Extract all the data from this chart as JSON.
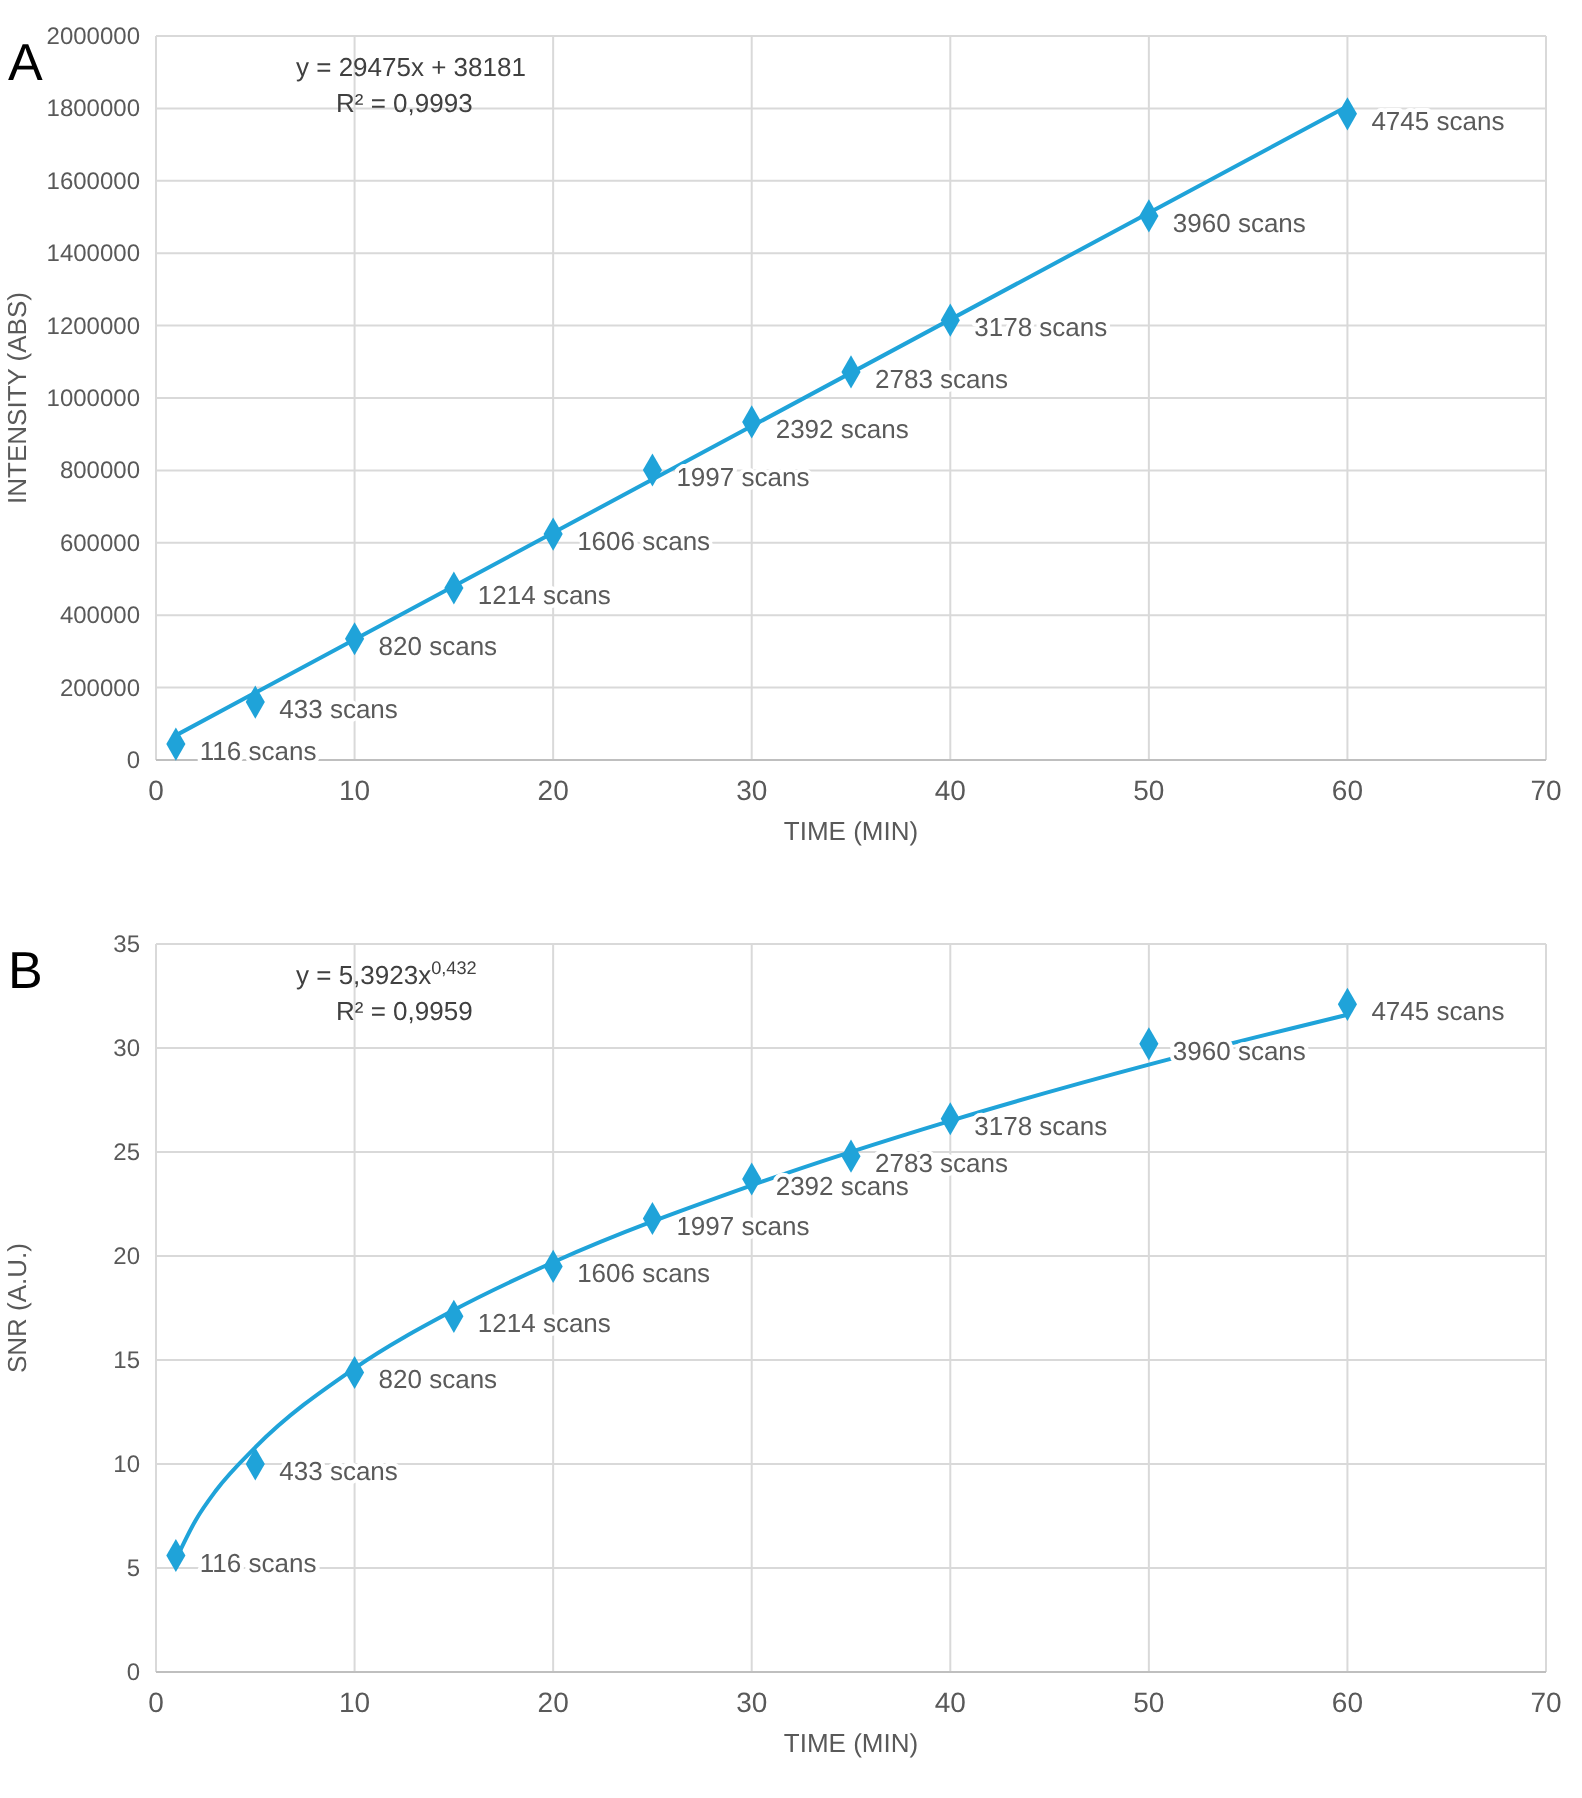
{
  "chart_data": [
    {
      "type": "scatter",
      "title": "A",
      "xlabel": "TIME (MIN)",
      "ylabel": "INTENSITY (ABS)",
      "xlim": [
        0,
        70
      ],
      "xticks": [
        0,
        10,
        20,
        30,
        40,
        50,
        60,
        70
      ],
      "ylim": [
        0,
        2000000
      ],
      "yticks": [
        0,
        200000,
        400000,
        600000,
        800000,
        1000000,
        1200000,
        1400000,
        1600000,
        1800000,
        2000000
      ],
      "grid": true,
      "annotations": [
        "y = 29475x + 38181",
        "R² = 0,9993",
        {
          "text": "116 scans",
          "x": 1,
          "y": 44000
        },
        {
          "text": "433 scans",
          "x": 5,
          "y": 160000
        },
        {
          "text": "820 scans",
          "x": 10,
          "y": 335000
        },
        {
          "text": "1214 scans",
          "x": 15,
          "y": 475000
        },
        {
          "text": "1606 scans",
          "x": 20,
          "y": 624000
        },
        {
          "text": "1997 scans",
          "x": 25,
          "y": 801000
        },
        {
          "text": "2392 scans",
          "x": 30,
          "y": 934000
        },
        {
          "text": "2783 scans",
          "x": 35,
          "y": 1072000
        },
        {
          "text": "3178 scans",
          "x": 40,
          "y": 1215000
        },
        {
          "text": "3960 scans",
          "x": 50,
          "y": 1503000
        },
        {
          "text": "4745 scans",
          "x": 60,
          "y": 1785000
        }
      ],
      "series": [
        {
          "type": "line",
          "color": "#1fa3d9",
          "marker": "none",
          "line_style": "solid",
          "x": [
            1,
            60
          ],
          "values": [
            68000,
            1806000
          ]
        },
        {
          "color": "#1fa3d9",
          "marker": "diamond",
          "x": [
            1,
            5,
            10,
            15,
            20,
            25,
            30,
            35,
            40,
            50,
            60
          ],
          "values": [
            44000,
            160000,
            335000,
            475000,
            624000,
            801000,
            934000,
            1072000,
            1215000,
            1503000,
            1785000
          ]
        }
      ]
    },
    {
      "type": "scatter",
      "title": "B",
      "xlabel": "TIME (MIN)",
      "ylabel": "SNR (A.U.)",
      "xlim": [
        0,
        70
      ],
      "xticks": [
        0,
        10,
        20,
        30,
        40,
        50,
        60,
        70
      ],
      "ylim": [
        0,
        35
      ],
      "yticks": [
        0,
        5,
        10,
        15,
        20,
        25,
        30,
        35
      ],
      "grid": true,
      "annotations": [
        "y = 5,3923x$^{0,432}$",
        "R² = 0,9959",
        {
          "text": "116 scans",
          "x": 1,
          "y": 5.6
        },
        {
          "text": "433 scans",
          "x": 5,
          "y": 10.0
        },
        {
          "text": "820 scans",
          "x": 10,
          "y": 14.4
        },
        {
          "text": "1214 scans",
          "x": 15,
          "y": 17.1
        },
        {
          "text": "1606 scans",
          "x": 20,
          "y": 19.5
        },
        {
          "text": "1997 scans",
          "x": 25,
          "y": 21.8
        },
        {
          "text": "2392 scans",
          "x": 30,
          "y": 23.7
        },
        {
          "text": "2783 scans",
          "x": 35,
          "y": 24.8
        },
        {
          "text": "3178 scans",
          "x": 40,
          "y": 26.6
        },
        {
          "text": "3960 scans",
          "x": 50,
          "y": 30.2
        },
        {
          "text": "4745 scans",
          "x": 60,
          "y": 32.1
        }
      ],
      "series": [
        {
          "type": "line",
          "color": "#1fa3d9",
          "marker": "none",
          "line_style": "solid",
          "x": [
            1,
            2,
            3,
            5,
            10,
            15,
            20,
            30,
            40,
            50,
            60
          ],
          "values": [
            5.4,
            7.3,
            8.7,
            10.8,
            14.6,
            17.4,
            19.7,
            23.4,
            26.5,
            29.2,
            31.6
          ]
        },
        {
          "color": "#1fa3d9",
          "marker": "diamond",
          "x": [
            1,
            5,
            10,
            15,
            20,
            25,
            30,
            35,
            40,
            50,
            60
          ],
          "values": [
            5.6,
            10.0,
            14.4,
            17.1,
            19.5,
            21.8,
            23.7,
            24.8,
            26.6,
            30.2,
            32.1
          ]
        }
      ]
    }
  ]
}
